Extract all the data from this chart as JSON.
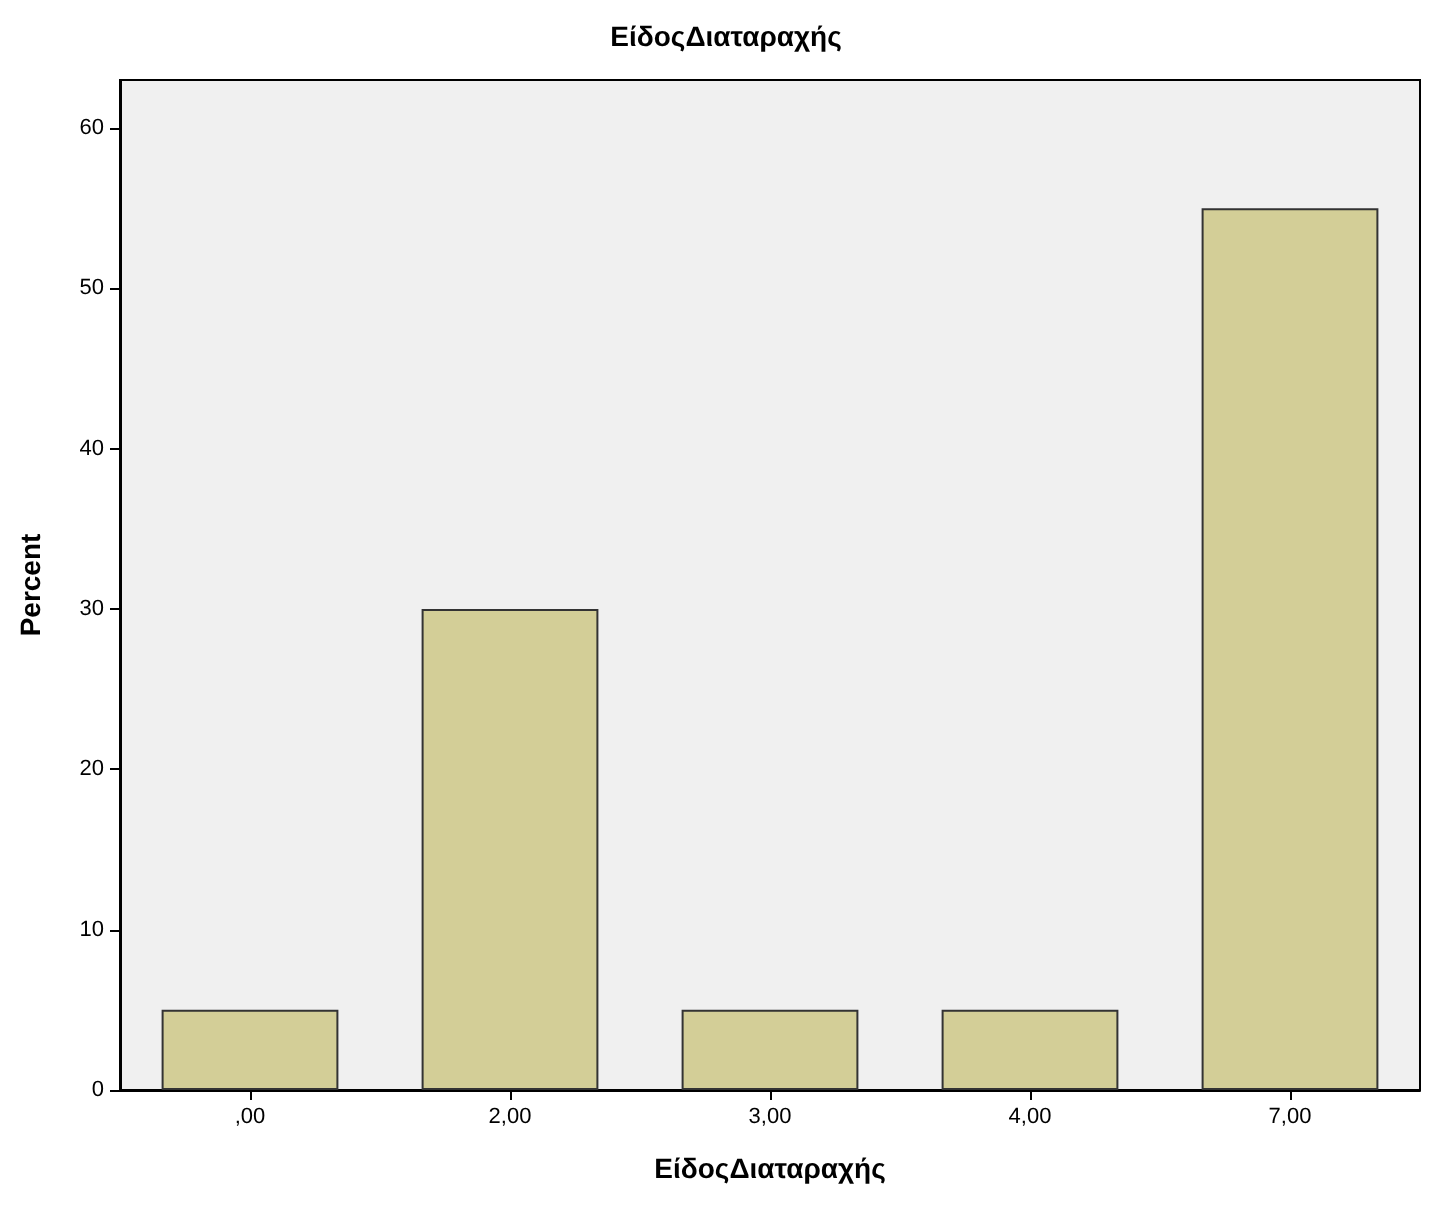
{
  "chart_data": {
    "type": "bar",
    "title": "ΕίδοςΔιαταραχής",
    "xlabel": "ΕίδοςΔιαταραχής",
    "ylabel": "Percent",
    "categories": [
      ",00",
      "2,00",
      "3,00",
      "4,00",
      "7,00"
    ],
    "values": [
      5,
      30,
      5,
      5,
      55
    ],
    "color": "#d3ce97",
    "ylim": [
      0,
      63
    ],
    "yticks": [
      0,
      10,
      20,
      30,
      40,
      50,
      60
    ],
    "grid": false
  }
}
